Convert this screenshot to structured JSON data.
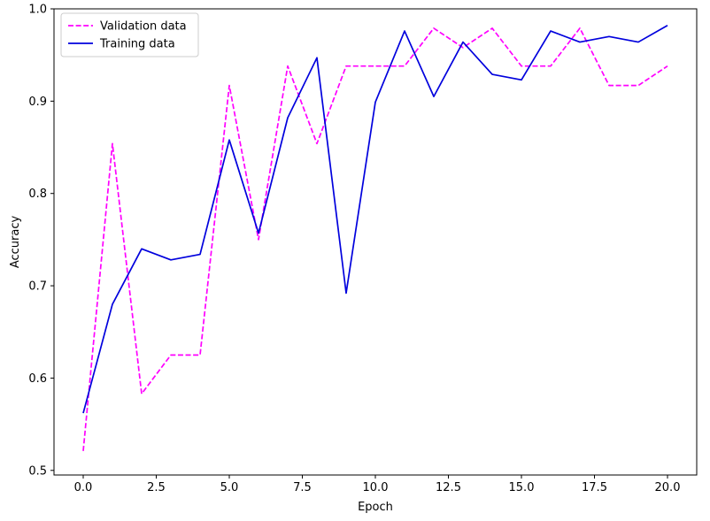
{
  "chart_data": {
    "type": "line",
    "title": "",
    "xlabel": "Epoch",
    "ylabel": "Accuracy",
    "xlim": [
      -1.0,
      21.0
    ],
    "ylim": [
      0.495,
      1.0
    ],
    "xticks": [
      0.0,
      2.5,
      5.0,
      7.5,
      10.0,
      12.5,
      15.0,
      17.5,
      20.0
    ],
    "xtick_labels": [
      "0.0",
      "2.5",
      "5.0",
      "7.5",
      "10.0",
      "12.5",
      "15.0",
      "17.5",
      "20.0"
    ],
    "yticks": [
      0.5,
      0.6,
      0.7,
      0.8,
      0.9,
      1.0
    ],
    "ytick_labels": [
      "0.5",
      "0.6",
      "0.7",
      "0.8",
      "0.9",
      "1.0"
    ],
    "grid": false,
    "legend_position": "top-left",
    "x": [
      0,
      1,
      2,
      3,
      4,
      5,
      6,
      7,
      8,
      9,
      10,
      11,
      12,
      13,
      14,
      15,
      16,
      17,
      18,
      19,
      20
    ],
    "series": [
      {
        "name": "Validation data",
        "color": "#ff00ff",
        "style": "dashed",
        "values": [
          0.521,
          0.854,
          0.583,
          0.625,
          0.625,
          0.917,
          0.75,
          0.938,
          0.854,
          0.938,
          0.938,
          0.938,
          0.979,
          0.958,
          0.979,
          0.938,
          0.938,
          0.979,
          0.917,
          0.917,
          0.938
        ]
      },
      {
        "name": "Training data",
        "color": "#0000dd",
        "style": "solid",
        "values": [
          0.562,
          0.68,
          0.74,
          0.728,
          0.734,
          0.858,
          0.757,
          0.882,
          0.947,
          0.692,
          0.899,
          0.976,
          0.905,
          0.964,
          0.929,
          0.923,
          0.976,
          0.964,
          0.97,
          0.964,
          0.982
        ]
      }
    ]
  }
}
